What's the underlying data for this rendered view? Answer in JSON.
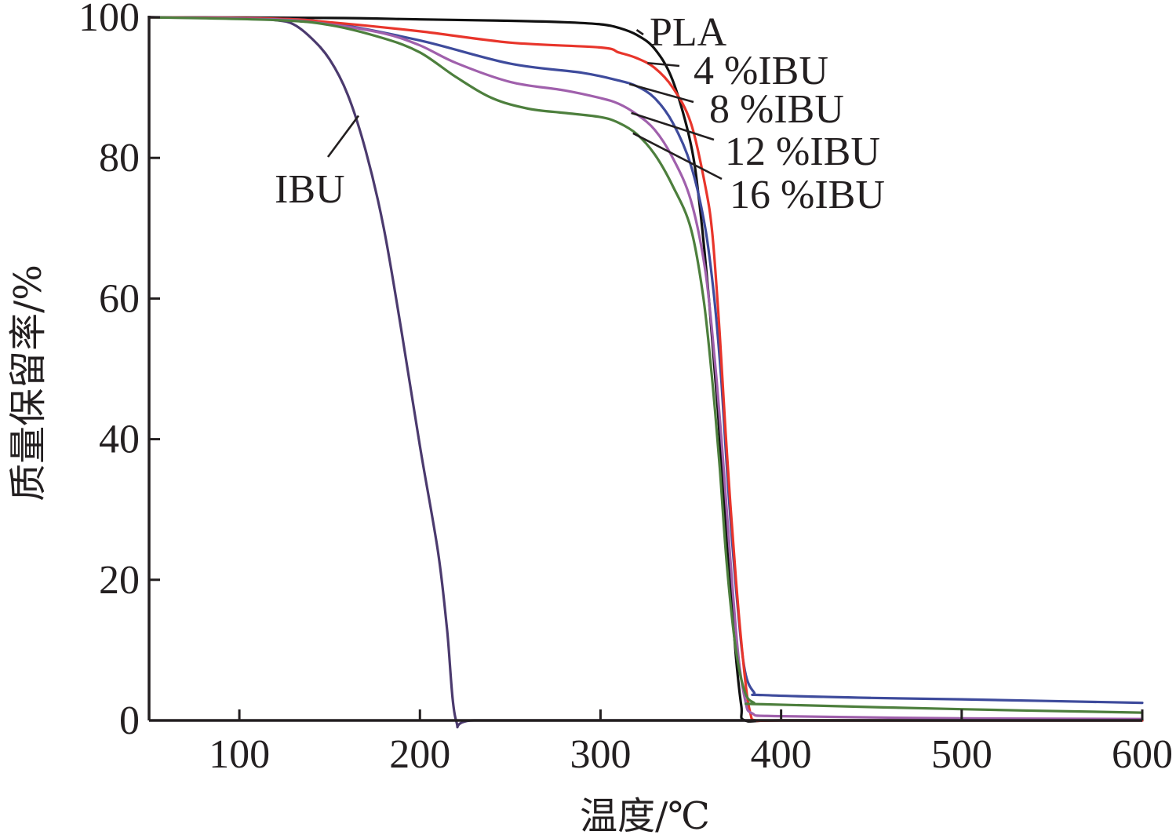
{
  "chart_data": {
    "type": "line",
    "xlabel": "温度/℃",
    "ylabel": "质量保留率/%",
    "xlim": [
      50,
      600
    ],
    "ylim": [
      0,
      100
    ],
    "xticks": [
      100,
      200,
      300,
      400,
      500,
      600
    ],
    "yticks": [
      0,
      20,
      40,
      60,
      80,
      100
    ],
    "grid": false,
    "legend": "inline labels",
    "series": [
      {
        "name": "IBU",
        "color": "#4b3a6e",
        "points": [
          [
            50,
            100
          ],
          [
            100,
            99.9
          ],
          [
            120,
            99.6
          ],
          [
            130,
            99
          ],
          [
            140,
            97
          ],
          [
            150,
            94
          ],
          [
            160,
            89
          ],
          [
            170,
            81
          ],
          [
            180,
            70
          ],
          [
            190,
            55
          ],
          [
            200,
            39
          ],
          [
            210,
            24
          ],
          [
            215,
            13
          ],
          [
            220,
            0
          ],
          [
            230,
            0
          ],
          [
            300,
            0
          ],
          [
            400,
            0
          ],
          [
            500,
            0
          ],
          [
            600,
            0
          ]
        ]
      },
      {
        "name": "PLA",
        "color": "#111111",
        "points": [
          [
            50,
            100
          ],
          [
            150,
            99.9
          ],
          [
            200,
            99.7
          ],
          [
            250,
            99.5
          ],
          [
            280,
            99.3
          ],
          [
            300,
            99
          ],
          [
            310,
            98.5
          ],
          [
            320,
            97.5
          ],
          [
            330,
            95.5
          ],
          [
            340,
            91
          ],
          [
            350,
            82
          ],
          [
            355,
            73
          ],
          [
            360,
            60
          ],
          [
            365,
            44
          ],
          [
            370,
            25
          ],
          [
            375,
            9
          ],
          [
            378,
            2
          ],
          [
            380,
            0
          ],
          [
            400,
            0
          ],
          [
            500,
            0
          ],
          [
            600,
            0
          ]
        ]
      },
      {
        "name": "4 %IBU",
        "color": "#e8352b",
        "points": [
          [
            50,
            100
          ],
          [
            120,
            99.8
          ],
          [
            150,
            99.3
          ],
          [
            200,
            98
          ],
          [
            250,
            96.4
          ],
          [
            300,
            95.7
          ],
          [
            310,
            95
          ],
          [
            320,
            94.2
          ],
          [
            330,
            92.8
          ],
          [
            340,
            90
          ],
          [
            350,
            85
          ],
          [
            358,
            76
          ],
          [
            362,
            69
          ],
          [
            366,
            55
          ],
          [
            370,
            38
          ],
          [
            375,
            20
          ],
          [
            380,
            6
          ],
          [
            383,
            1
          ],
          [
            386,
            0
          ],
          [
            400,
            0
          ],
          [
            500,
            0
          ],
          [
            600,
            0
          ]
        ]
      },
      {
        "name": "8 %IBU",
        "color": "#3e4b9c",
        "points": [
          [
            50,
            100
          ],
          [
            120,
            99.8
          ],
          [
            150,
            99.2
          ],
          [
            200,
            96.7
          ],
          [
            250,
            93.4
          ],
          [
            290,
            92.1
          ],
          [
            310,
            91
          ],
          [
            320,
            90.2
          ],
          [
            330,
            88.5
          ],
          [
            340,
            85
          ],
          [
            350,
            79
          ],
          [
            358,
            70
          ],
          [
            363,
            60
          ],
          [
            367,
            48
          ],
          [
            371,
            32
          ],
          [
            376,
            16
          ],
          [
            380,
            7
          ],
          [
            385,
            4
          ],
          [
            390,
            3.6
          ],
          [
            450,
            3.2
          ],
          [
            500,
            3
          ],
          [
            600,
            2.5
          ]
        ]
      },
      {
        "name": "12 %IBU",
        "color": "#a060ac",
        "points": [
          [
            50,
            100
          ],
          [
            120,
            99.7
          ],
          [
            150,
            99
          ],
          [
            180,
            97.7
          ],
          [
            200,
            96
          ],
          [
            220,
            93.5
          ],
          [
            250,
            90.8
          ],
          [
            280,
            89.6
          ],
          [
            300,
            88.5
          ],
          [
            310,
            87.7
          ],
          [
            320,
            86.2
          ],
          [
            330,
            84
          ],
          [
            340,
            80
          ],
          [
            350,
            74
          ],
          [
            358,
            64
          ],
          [
            363,
            52
          ],
          [
            367,
            40
          ],
          [
            371,
            26
          ],
          [
            376,
            10
          ],
          [
            380,
            3
          ],
          [
            384,
            1
          ],
          [
            400,
            0.6
          ],
          [
            500,
            0.3
          ],
          [
            600,
            0.2
          ]
        ]
      },
      {
        "name": "16 %IBU",
        "color": "#4d7f3d",
        "points": [
          [
            50,
            100
          ],
          [
            120,
            99.6
          ],
          [
            150,
            98.9
          ],
          [
            180,
            97
          ],
          [
            200,
            95
          ],
          [
            220,
            91.5
          ],
          [
            240,
            88.5
          ],
          [
            260,
            87
          ],
          [
            280,
            86.4
          ],
          [
            300,
            85.8
          ],
          [
            310,
            85
          ],
          [
            320,
            83.4
          ],
          [
            330,
            80.5
          ],
          [
            340,
            76
          ],
          [
            350,
            70
          ],
          [
            357,
            60
          ],
          [
            362,
            48
          ],
          [
            366,
            36
          ],
          [
            370,
            22
          ],
          [
            375,
            10
          ],
          [
            380,
            4
          ],
          [
            385,
            2.5
          ],
          [
            390,
            2.3
          ],
          [
            500,
            1.6
          ],
          [
            600,
            1.1
          ]
        ]
      }
    ]
  }
}
